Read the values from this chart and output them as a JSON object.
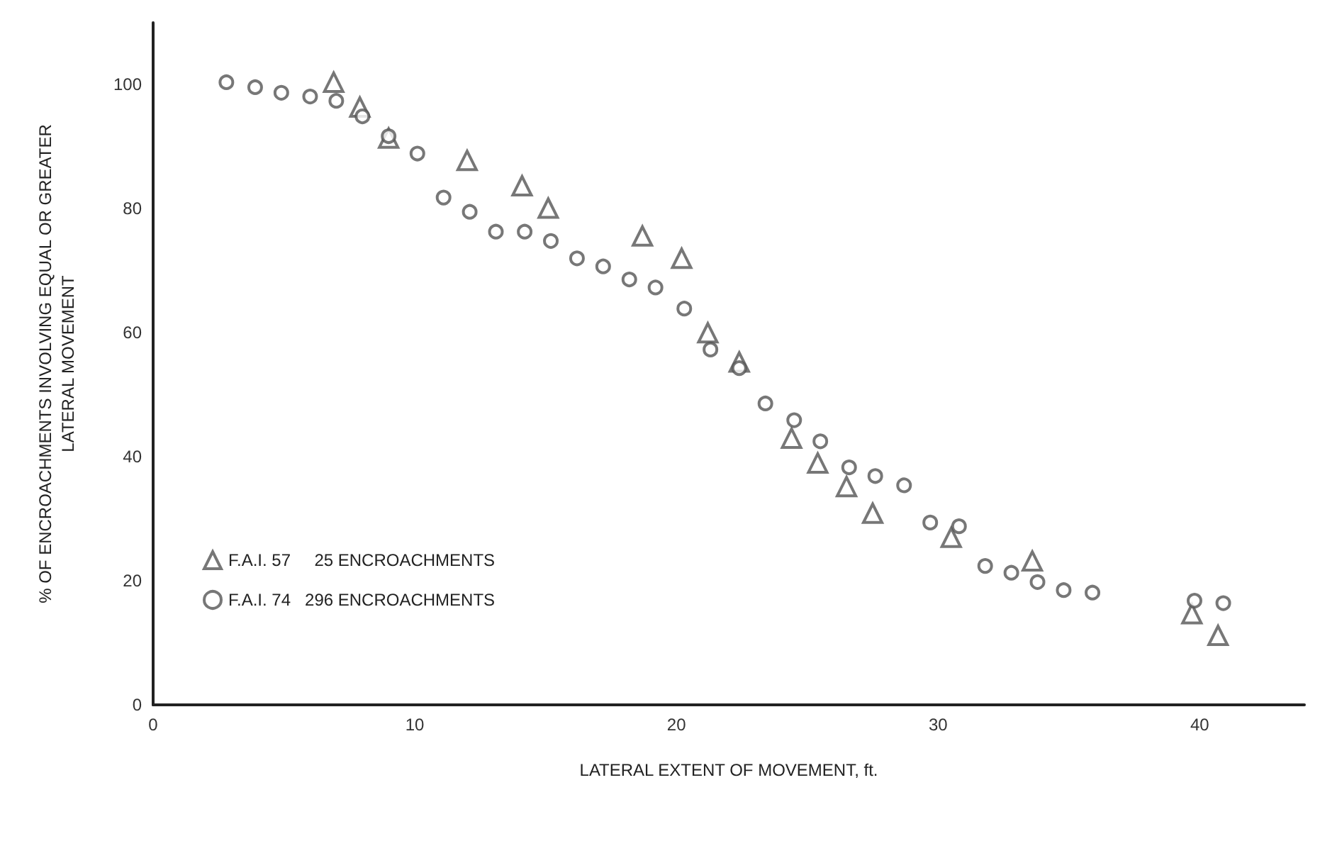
{
  "chart_data": {
    "type": "scatter",
    "xlabel": "LATERAL EXTENT OF MOVEMENT, ft.",
    "ylabel": "% OF ENCROACHMENTS INVOLVING EQUAL OR GREATER\nLATERAL MOVEMENT",
    "xlim": [
      0,
      44
    ],
    "ylim": [
      0,
      110
    ],
    "xticks": [
      0,
      10,
      20,
      30,
      40
    ],
    "yticks": [
      0,
      20,
      40,
      60,
      80,
      100
    ],
    "grid": false,
    "legend": "left",
    "series": [
      {
        "name": "F.A.I. 57     25 ENCROACHMENTS",
        "color": "#555555",
        "marker": "triangle",
        "x": [
          6.9,
          7.9,
          9,
          12,
          14.1,
          15.1,
          18.7,
          20.2,
          21.2,
          22.4,
          24.4,
          25.4,
          26.5,
          27.5,
          30.5,
          33.6,
          39.7,
          40.7
        ],
        "values": [
          100.4,
          96.4,
          91.4,
          87.8,
          83.7,
          80.1,
          75.6,
          72,
          60,
          55.3,
          43,
          39,
          35.2,
          30.9,
          27,
          23.2,
          14.7,
          11.2
        ]
      },
      {
        "name": "F.A.I. 74   296 ENCROACHMENTS",
        "color": "#555555",
        "marker": "circle",
        "x": [
          2.8,
          3.9,
          4.9,
          6,
          7,
          8,
          9,
          10.1,
          11.1,
          12.1,
          13.1,
          14.2,
          15.2,
          16.2,
          17.2,
          18.2,
          19.2,
          20.3,
          21.3,
          22.4,
          23.4,
          24.5,
          25.5,
          26.6,
          27.6,
          28.7,
          29.7,
          30.8,
          31.8,
          32.8,
          33.8,
          34.8,
          35.9,
          39.8,
          40.9
        ],
        "values": [
          100.4,
          99.6,
          98.7,
          98.1,
          97.4,
          94.9,
          91.7,
          88.9,
          81.8,
          79.5,
          76.3,
          76.3,
          74.8,
          72,
          70.7,
          68.6,
          67.3,
          63.9,
          57.3,
          54.3,
          48.6,
          45.9,
          42.5,
          38.3,
          36.9,
          35.4,
          29.4,
          28.8,
          22.4,
          21.3,
          19.8,
          18.5,
          18.1,
          16.8,
          16.4
        ]
      }
    ]
  }
}
